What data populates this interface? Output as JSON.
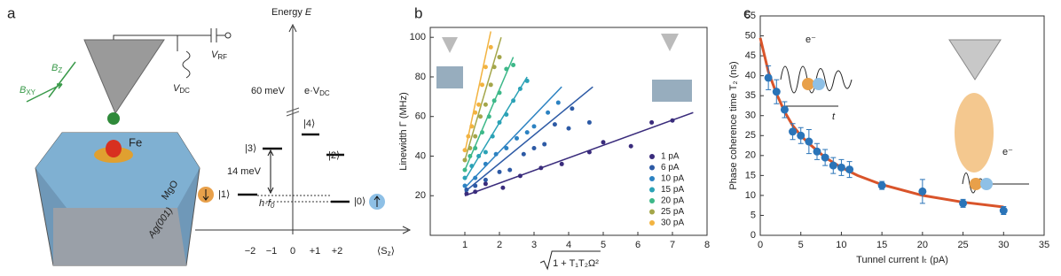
{
  "diagram": {
    "panel_label": "a",
    "b_z": {
      "main": "B",
      "sub": "Z"
    },
    "b_xy": {
      "main": "B",
      "sub": "XY"
    },
    "v_rf": {
      "main": "V",
      "sub": "RF"
    },
    "v_dc": {
      "main": "V",
      "sub": "DC"
    },
    "fe": "Fe",
    "mgo": "MgO",
    "ag": "Ag(001)",
    "energy": {
      "main": "Energy ",
      "italic": "E"
    },
    "gap": "60 meV",
    "bias": {
      "main": "e·V",
      "sub": "DC"
    },
    "states": [
      "|0⟩",
      "|1⟩",
      "|2⟩",
      "|3⟩",
      "|4⟩"
    ],
    "splitting": "14 meV",
    "zeeman": {
      "main": "h·f",
      "sub": "0"
    },
    "sz_ticks": [
      "−2",
      "−1",
      "0",
      "+1",
      "+2"
    ],
    "sz_label": {
      "main": "⟨S",
      "sub": "z",
      "end": "⟩"
    }
  },
  "chart_data": [
    {
      "type": "scatter",
      "panel_label": "b",
      "y_label": "Linewidth Γ (MHz)",
      "x_label": "1 + T₁T₂Ω²",
      "xlim": [
        0,
        8
      ],
      "ylim": [
        0,
        105
      ],
      "xticks": [
        1,
        2,
        3,
        4,
        5,
        6,
        7,
        8
      ],
      "yticks": [
        20,
        40,
        60,
        80,
        100
      ],
      "legend": "lower right",
      "series": [
        {
          "name": "1 pA",
          "color": "#3a2c7c",
          "x": [
            1.05,
            1.3,
            1.6,
            2.1,
            2.6,
            3.2,
            3.8,
            4.6,
            5.0,
            5.8,
            6.4,
            7.0
          ],
          "values": [
            21,
            22,
            26,
            24,
            30,
            34,
            36,
            42,
            47,
            45,
            57,
            58
          ],
          "fit_x": [
            1,
            7.6
          ],
          "fit_values": [
            20,
            62
          ]
        },
        {
          "name": "6 pA",
          "color": "#2d5aa5",
          "x": [
            1.05,
            1.3,
            1.6,
            2.0,
            2.3,
            2.7,
            3.0,
            3.3,
            3.6,
            4.0,
            4.1,
            4.6
          ],
          "values": [
            23,
            25,
            28,
            32,
            33,
            41,
            44,
            46,
            56,
            54,
            64,
            57
          ],
          "fit_x": [
            1,
            4.7
          ],
          "fit_values": [
            22,
            75
          ]
        },
        {
          "name": "10 pA",
          "color": "#2c82c2",
          "x": [
            1.0,
            1.3,
            1.6,
            1.9,
            2.2,
            2.5,
            2.8,
            3.0,
            3.4,
            3.7
          ],
          "values": [
            25,
            29,
            36,
            41,
            44,
            49,
            52,
            55,
            62,
            67
          ],
          "fit_x": [
            1,
            3.8
          ],
          "fit_values": [
            24,
            75
          ]
        },
        {
          "name": "15 pA",
          "color": "#2ba2b6",
          "x": [
            1.0,
            1.2,
            1.4,
            1.6,
            1.8,
            2.0,
            2.2,
            2.4,
            2.6,
            2.8
          ],
          "values": [
            29,
            35,
            40,
            42,
            50,
            57,
            61,
            68,
            74,
            78
          ],
          "fit_x": [
            1,
            2.8
          ],
          "fit_values": [
            28,
            80
          ]
        },
        {
          "name": "20 pA",
          "color": "#3db889",
          "x": [
            1.0,
            1.15,
            1.3,
            1.5,
            1.7,
            1.85,
            2.0,
            2.2,
            2.4
          ],
          "values": [
            33,
            40,
            44,
            52,
            60,
            68,
            72,
            84,
            86
          ],
          "fit_x": [
            1,
            2.4
          ],
          "fit_values": [
            33,
            90
          ]
        },
        {
          "name": "25 pA",
          "color": "#a4a64a",
          "x": [
            1.0,
            1.15,
            1.3,
            1.45,
            1.6,
            1.75,
            1.85,
            2.0
          ],
          "values": [
            38,
            44,
            50,
            60,
            66,
            76,
            85,
            90
          ],
          "fit_x": [
            1,
            2.05
          ],
          "fit_values": [
            38,
            100
          ]
        },
        {
          "name": "30 pA",
          "color": "#f2b340",
          "x": [
            1.0,
            1.1,
            1.2,
            1.3,
            1.4,
            1.5,
            1.6,
            1.75
          ],
          "values": [
            43,
            50,
            55,
            62,
            66,
            76,
            85,
            95
          ],
          "fit_x": [
            1,
            1.75
          ],
          "fit_values": [
            42,
            103
          ]
        }
      ]
    },
    {
      "type": "scatter",
      "panel_label": "c",
      "y_label": "Phase coherence time T₂ (ns)",
      "x_label": "Tunnel current Iₜ (pA)",
      "xlim": [
        0,
        35
      ],
      "ylim": [
        0,
        55
      ],
      "xticks": [
        0,
        5,
        10,
        15,
        20,
        25,
        30,
        35
      ],
      "yticks": [
        0,
        5,
        10,
        15,
        20,
        25,
        30,
        35,
        40,
        45,
        50,
        55
      ],
      "annotations": [
        "e⁻",
        "t",
        "e⁻"
      ],
      "series": [
        {
          "color": "#2a74b8",
          "fit_color": "#d9542a",
          "x": [
            1,
            2,
            3,
            4,
            5,
            6,
            7,
            8,
            9,
            10,
            11,
            15,
            20,
            25,
            30
          ],
          "values": [
            39.5,
            36,
            31.5,
            26,
            25,
            23.5,
            21,
            19.5,
            17.5,
            17,
            16.5,
            12.5,
            11,
            8,
            6.2
          ],
          "errors": [
            3,
            3,
            2,
            2,
            2,
            3,
            2,
            2,
            2,
            2,
            2,
            1,
            3,
            1,
            1
          ],
          "fit_x": [
            0,
            1,
            2,
            3,
            4,
            5,
            6,
            8,
            10,
            12,
            15,
            20,
            25,
            30
          ],
          "fit_values": [
            49.5,
            41,
            35.5,
            31,
            27.5,
            25,
            23,
            19.5,
            17,
            15,
            12.7,
            10,
            8.3,
            7.1
          ]
        }
      ]
    }
  ]
}
